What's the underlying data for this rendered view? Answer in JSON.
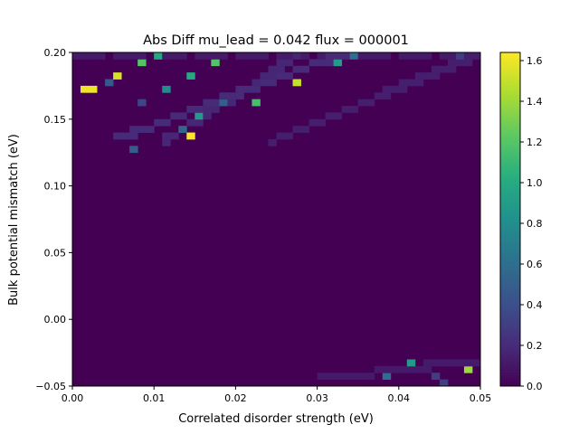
{
  "chart_data": {
    "type": "heatmap",
    "title": "Abs Diff mu_lead = 0.042 flux = 000001",
    "xlabel": "Correlated disorder strength (eV)",
    "ylabel": "Bulk potential mismatch (eV)",
    "xlim": [
      0.0,
      0.05
    ],
    "ylim": [
      -0.05,
      0.2
    ],
    "x_ticks": [
      "0.00",
      "0.01",
      "0.02",
      "0.03",
      "0.04",
      "0.05"
    ],
    "y_ticks": [
      "−0.05",
      "0.00",
      "0.05",
      "0.10",
      "0.15",
      "0.20"
    ],
    "colorbar": {
      "colormap": "viridis",
      "range": [
        0.0,
        1.64
      ],
      "ticks": [
        "0.0",
        "0.2",
        "0.4",
        "0.6",
        "0.8",
        "1.0",
        "1.2",
        "1.4",
        "1.6"
      ]
    },
    "grid": {
      "nx": 50,
      "ny": 50,
      "background_value": 0.0
    },
    "hot_cells": [
      {
        "x": 0.0014,
        "y": 0.173,
        "v": 1.6
      },
      {
        "x": 0.0024,
        "y": 0.173,
        "v": 1.6
      },
      {
        "x": 0.0054,
        "y": 0.183,
        "v": 1.55
      },
      {
        "x": 0.0084,
        "y": 0.193,
        "v": 1.2
      },
      {
        "x": 0.0104,
        "y": 0.198,
        "v": 1.0
      },
      {
        "x": 0.0144,
        "y": 0.139,
        "v": 1.64
      },
      {
        "x": 0.0144,
        "y": 0.183,
        "v": 1.0
      },
      {
        "x": 0.0154,
        "y": 0.154,
        "v": 0.9
      },
      {
        "x": 0.0114,
        "y": 0.173,
        "v": 0.8
      },
      {
        "x": 0.0134,
        "y": 0.144,
        "v": 0.55
      },
      {
        "x": 0.0074,
        "y": 0.129,
        "v": 0.5
      },
      {
        "x": 0.0174,
        "y": 0.193,
        "v": 1.2
      },
      {
        "x": 0.0224,
        "y": 0.164,
        "v": 1.15
      },
      {
        "x": 0.0184,
        "y": 0.164,
        "v": 0.5
      },
      {
        "x": 0.0274,
        "y": 0.178,
        "v": 1.5
      },
      {
        "x": 0.0324,
        "y": 0.193,
        "v": 0.9
      },
      {
        "x": 0.0344,
        "y": 0.198,
        "v": 0.6
      },
      {
        "x": 0.0044,
        "y": 0.178,
        "v": 0.45
      },
      {
        "x": 0.0084,
        "y": 0.164,
        "v": 0.35
      },
      {
        "x": 0.0474,
        "y": 0.198,
        "v": 0.3
      },
      {
        "x": 0.0414,
        "y": -0.032,
        "v": 0.9
      },
      {
        "x": 0.0484,
        "y": -0.037,
        "v": 1.4
      },
      {
        "x": 0.0384,
        "y": -0.042,
        "v": 0.6
      },
      {
        "x": 0.0444,
        "y": -0.042,
        "v": 0.3
      },
      {
        "x": 0.0454,
        "y": -0.047,
        "v": 0.3
      }
    ],
    "bands": [
      {
        "x0": 0.005,
        "y0": 0.135,
        "x1": 0.034,
        "y1": 0.2,
        "v": 0.2
      },
      {
        "x0": 0.011,
        "y0": 0.132,
        "x1": 0.028,
        "y1": 0.2,
        "v": 0.18
      },
      {
        "x0": 0.024,
        "y0": 0.132,
        "x1": 0.05,
        "y1": 0.2,
        "v": 0.14
      },
      {
        "x0": 0.0,
        "y0": 0.195,
        "x1": 0.05,
        "y1": 0.195,
        "v": 0.12
      },
      {
        "x0": 0.03,
        "y0": -0.045,
        "x1": 0.05,
        "y1": -0.03,
        "v": 0.12
      }
    ]
  }
}
